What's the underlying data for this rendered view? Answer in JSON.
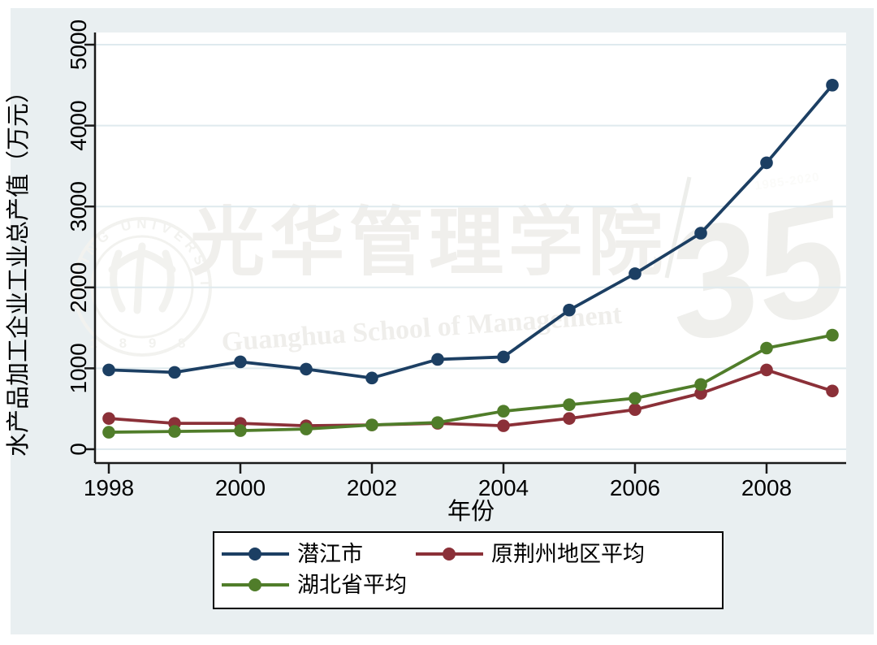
{
  "figure": {
    "background": "#ffffff",
    "canvas_color": "#e9eff1",
    "plot_background": "#ffffff",
    "gridline_color": "#dfeaee",
    "axis_color": "#1a1a1a"
  },
  "chart_data": {
    "type": "line",
    "x": [
      1998,
      1999,
      2000,
      2001,
      2002,
      2003,
      2004,
      2005,
      2006,
      2007,
      2008,
      2009
    ],
    "series": [
      {
        "name": "潜江市",
        "color": "#1c3f63",
        "values": [
          980,
          950,
          1080,
          990,
          880,
          1110,
          1140,
          1720,
          2170,
          2670,
          3540,
          4500
        ]
      },
      {
        "name": "原荆州地区平均",
        "color": "#8b3038",
        "values": [
          380,
          320,
          320,
          290,
          300,
          320,
          290,
          380,
          490,
          690,
          980,
          720
        ]
      },
      {
        "name": "湖北省平均",
        "color": "#507d2a",
        "values": [
          210,
          220,
          230,
          250,
          300,
          330,
          470,
          550,
          630,
          800,
          1250,
          1410
        ]
      }
    ],
    "title": "",
    "xlabel": "年份",
    "ylabel": "水产品加工企业工业总产值（万元）",
    "xlim": [
      1998,
      2009
    ],
    "ylim": [
      0,
      5000
    ],
    "xticks": [
      1998,
      2000,
      2002,
      2004,
      2006,
      2008
    ],
    "yticks": [
      0,
      1000,
      2000,
      3000,
      4000,
      5000
    ],
    "grid": "horizontal",
    "legend_position": "bottom"
  },
  "legend": {
    "items": [
      {
        "label": "潜江市"
      },
      {
        "label": "原荆州地区平均"
      },
      {
        "label": "湖北省平均"
      }
    ]
  },
  "watermark": {
    "seal_top_text": "PEKING UNIVERSITY",
    "seal_year": "1 8 9 8",
    "cn_text": "光华管理学院",
    "en_text": "Guanghua School of Management",
    "anniversary_number": "35",
    "anniversary_years": "1985-2020"
  }
}
